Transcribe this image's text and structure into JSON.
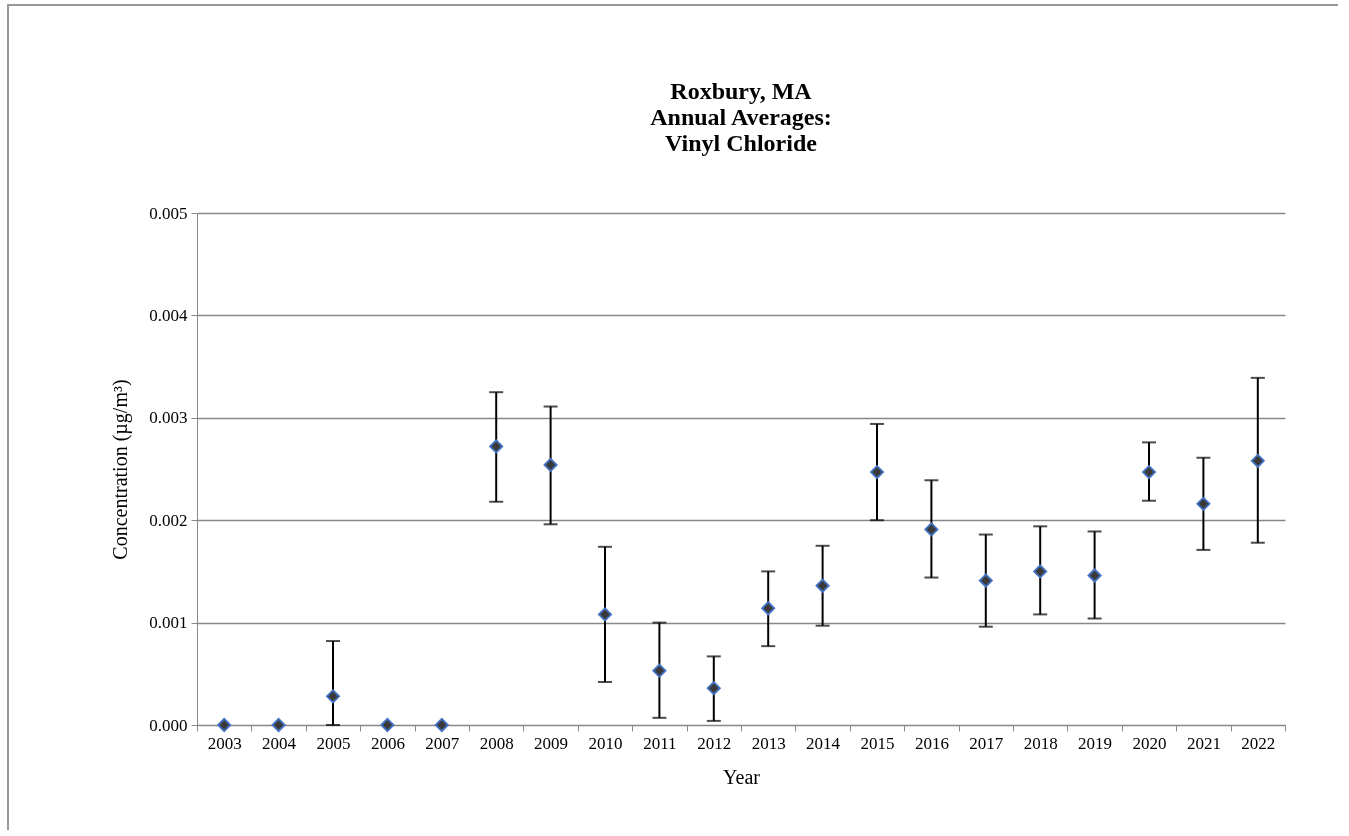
{
  "chart_data": {
    "type": "scatter",
    "title": "Roxbury, MA\nAnnual Averages:\nVinyl Chloride",
    "xlabel": "Year",
    "ylabel": "Concentration (µg/m³)",
    "categories": [
      "2003",
      "2004",
      "2005",
      "2006",
      "2007",
      "2008",
      "2009",
      "2010",
      "2011",
      "2012",
      "2013",
      "2014",
      "2015",
      "2016",
      "2017",
      "2018",
      "2019",
      "2020",
      "2021",
      "2022"
    ],
    "values": [
      0,
      0,
      0.00028,
      0,
      0,
      0.00272,
      0.00254,
      0.00108,
      0.00053,
      0.00036,
      0.00114,
      0.00136,
      0.00247,
      0.00191,
      0.00141,
      0.0015,
      0.00146,
      0.00247,
      0.00216,
      0.00258
    ],
    "errors": [
      null,
      null,
      [
        0,
        0.00082
      ],
      null,
      null,
      [
        0.00218,
        0.00325
      ],
      [
        0.00196,
        0.00311
      ],
      [
        0.00042,
        0.00174
      ],
      [
        7e-05,
        0.001
      ],
      [
        4e-05,
        0.00067
      ],
      [
        0.00077,
        0.0015
      ],
      [
        0.00097,
        0.00175
      ],
      [
        0.002,
        0.00294
      ],
      [
        0.00144,
        0.00239
      ],
      [
        0.00096,
        0.00186
      ],
      [
        0.00108,
        0.00194
      ],
      [
        0.00104,
        0.00189
      ],
      [
        0.00219,
        0.00276
      ],
      [
        0.00171,
        0.00261
      ],
      [
        0.00178,
        0.00339
      ]
    ],
    "color": "#3a3a3a",
    "marker": "diamond",
    "ylim": [
      0,
      0.005
    ],
    "yticks": [
      {
        "value": 0,
        "label": "0.000"
      },
      {
        "value": 0.001,
        "label": "0.001"
      },
      {
        "value": 0.002,
        "label": "0.002"
      },
      {
        "value": 0.003,
        "label": "0.003"
      },
      {
        "value": 0.004,
        "label": "0.004"
      },
      {
        "value": 0.005,
        "label": "0.005"
      }
    ],
    "grid": "y"
  }
}
